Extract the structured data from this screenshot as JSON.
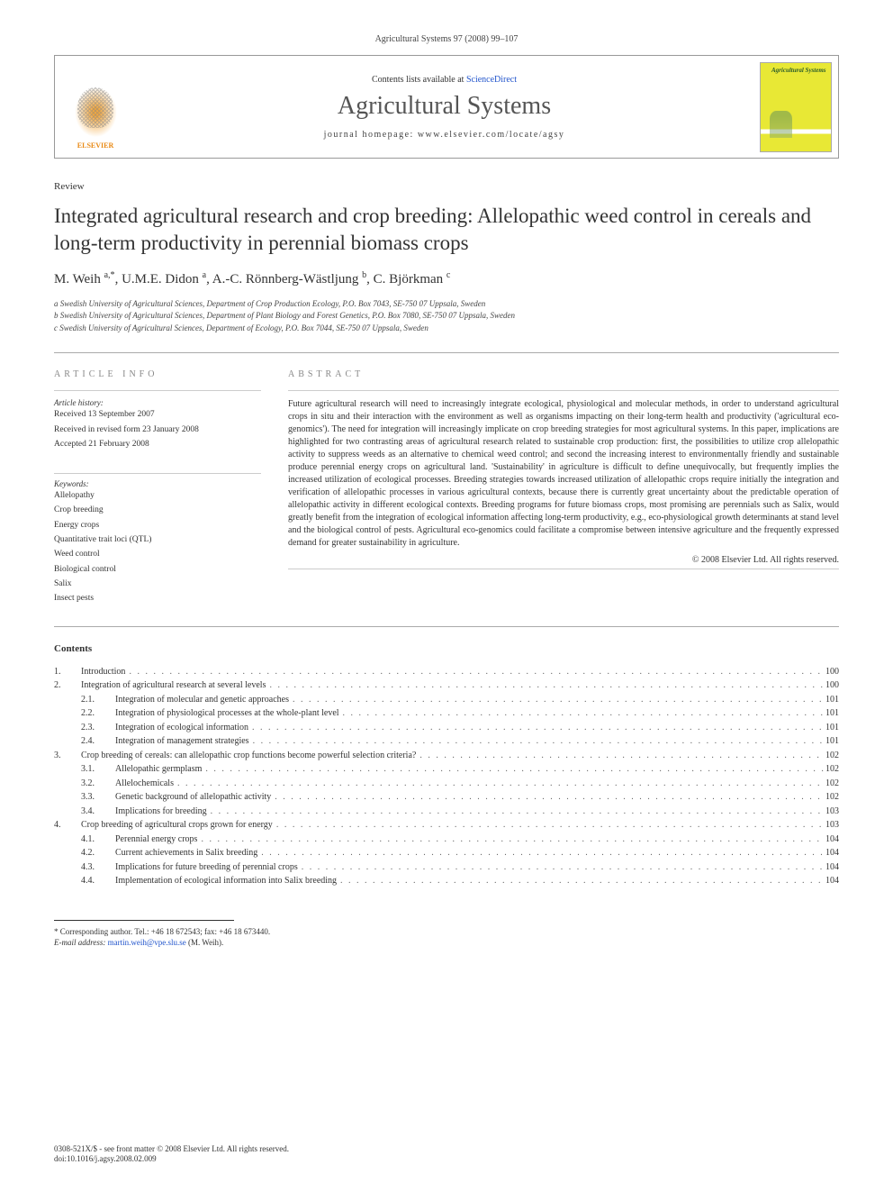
{
  "header": {
    "journal_ref": "Agricultural Systems 97 (2008) 99–107",
    "contents_available": "Contents lists available at ",
    "sciencedirect": "ScienceDirect",
    "journal_title": "Agricultural Systems",
    "homepage_label": "journal homepage: ",
    "homepage_url": "www.elsevier.com/locate/agsy",
    "publisher_name": "ELSEVIER",
    "cover_title": "Agricultural Systems"
  },
  "article": {
    "type": "Review",
    "title": "Integrated agricultural research and crop breeding: Allelopathic weed control in cereals and long-term productivity in perennial biomass crops",
    "authors_html": "M. Weih <sup>a,*</sup>, U.M.E. Didon <sup>a</sup>, A.-C. Rönnberg-Wästljung <sup>b</sup>, C. Björkman <sup>c</sup>",
    "affiliations": [
      "a Swedish University of Agricultural Sciences, Department of Crop Production Ecology, P.O. Box 7043, SE-750 07 Uppsala, Sweden",
      "b Swedish University of Agricultural Sciences, Department of Plant Biology and Forest Genetics, P.O. Box 7080, SE-750 07 Uppsala, Sweden",
      "c Swedish University of Agricultural Sciences, Department of Ecology, P.O. Box 7044, SE-750 07 Uppsala, Sweden"
    ]
  },
  "info": {
    "heading": "ARTICLE INFO",
    "history_label": "Article history:",
    "received": "Received 13 September 2007",
    "revised": "Received in revised form 23 January 2008",
    "accepted": "Accepted 21 February 2008",
    "keywords_label": "Keywords:",
    "keywords": [
      "Allelopathy",
      "Crop breeding",
      "Energy crops",
      "Quantitative trait loci (QTL)",
      "Weed control",
      "Biological control",
      "Salix",
      "Insect pests"
    ]
  },
  "abstract": {
    "heading": "ABSTRACT",
    "text": "Future agricultural research will need to increasingly integrate ecological, physiological and molecular methods, in order to understand agricultural crops in situ and their interaction with the environment as well as organisms impacting on their long-term health and productivity ('agricultural eco-genomics'). The need for integration will increasingly implicate on crop breeding strategies for most agricultural systems. In this paper, implications are highlighted for two contrasting areas of agricultural research related to sustainable crop production: first, the possibilities to utilize crop allelopathic activity to suppress weeds as an alternative to chemical weed control; and second the increasing interest to environmentally friendly and sustainable produce perennial energy crops on agricultural land. 'Sustainability' in agriculture is difficult to define unequivocally, but frequently implies the increased utilization of ecological processes. Breeding strategies towards increased utilization of allelopathic crops require initially the integration and verification of allelopathic processes in various agricultural contexts, because there is currently great uncertainty about the predictable operation of allelopathic activity in different ecological contexts. Breeding programs for future biomass crops, most promising are perennials such as Salix, would greatly benefit from the integration of ecological information affecting long-term productivity, e.g., eco-physiological growth determinants at stand level and the biological control of pests. Agricultural eco-genomics could facilitate a compromise between intensive agriculture and the frequently expressed demand for greater sustainability in agriculture.",
    "copyright": "© 2008 Elsevier Ltd. All rights reserved."
  },
  "contents": {
    "heading": "Contents",
    "items": [
      {
        "num": "1.",
        "label": "Introduction",
        "page": "100",
        "sub": []
      },
      {
        "num": "2.",
        "label": "Integration of agricultural research at several levels",
        "page": "100",
        "sub": [
          {
            "num": "2.1.",
            "label": "Integration of molecular and genetic approaches",
            "page": "101"
          },
          {
            "num": "2.2.",
            "label": "Integration of physiological processes at the whole-plant level",
            "page": "101"
          },
          {
            "num": "2.3.",
            "label": "Integration of ecological information",
            "page": "101"
          },
          {
            "num": "2.4.",
            "label": "Integration of management strategies",
            "page": "101"
          }
        ]
      },
      {
        "num": "3.",
        "label": "Crop breeding of cereals: can allelopathic crop functions become powerful selection criteria?",
        "page": "102",
        "sub": [
          {
            "num": "3.1.",
            "label": "Allelopathic germplasm",
            "page": "102"
          },
          {
            "num": "3.2.",
            "label": "Allelochemicals",
            "page": "102"
          },
          {
            "num": "3.3.",
            "label": "Genetic background of allelopathic activity",
            "page": "102"
          },
          {
            "num": "3.4.",
            "label": "Implications for breeding",
            "page": "103"
          }
        ]
      },
      {
        "num": "4.",
        "label": "Crop breeding of agricultural crops grown for energy",
        "page": "103",
        "sub": [
          {
            "num": "4.1.",
            "label": "Perennial energy crops",
            "page": "104"
          },
          {
            "num": "4.2.",
            "label": "Current achievements in Salix breeding",
            "page": "104"
          },
          {
            "num": "4.3.",
            "label": "Implications for future breeding of perennial crops",
            "page": "104"
          },
          {
            "num": "4.4.",
            "label": "Implementation of ecological information into Salix breeding",
            "page": "104"
          }
        ]
      }
    ]
  },
  "footnote": {
    "corresponding": "* Corresponding author. Tel.: +46 18 672543; fax: +46 18 673440.",
    "email_label": "E-mail address: ",
    "email": "martin.weih@vpe.slu.se",
    "email_suffix": " (M. Weih)."
  },
  "footer": {
    "line1": "0308-521X/$ - see front matter © 2008 Elsevier Ltd. All rights reserved.",
    "line2": "doi:10.1016/j.agsy.2008.02.009"
  },
  "colors": {
    "text": "#333333",
    "muted": "#888888",
    "link": "#2255cc",
    "elsevier_orange": "#e98a15",
    "cover_yellow": "#e8e835",
    "cover_green": "#2a5c2a",
    "border": "#999999",
    "background": "#ffffff"
  },
  "fonts": {
    "body_family": "Georgia, 'Times New Roman', serif",
    "title_size_pt": 23,
    "journal_title_size_pt": 28,
    "body_size_pt": 10,
    "small_size_pt": 9
  }
}
